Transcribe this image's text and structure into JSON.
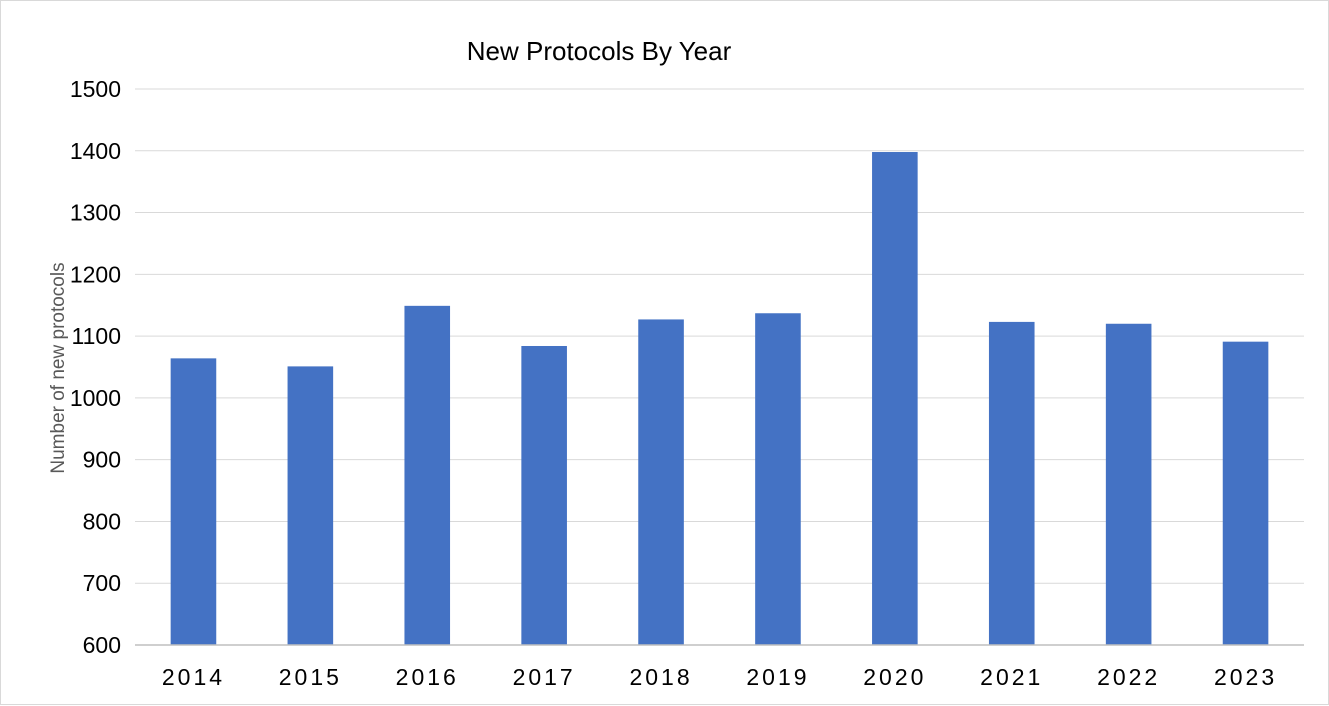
{
  "chart_data": {
    "type": "bar",
    "title": "New Protocols By Year",
    "xlabel": "",
    "ylabel": "Number of new protocols",
    "categories": [
      "2014",
      "2015",
      "2016",
      "2017",
      "2018",
      "2019",
      "2020",
      "2021",
      "2022",
      "2023"
    ],
    "series": [
      {
        "values": [
          1064,
          1051,
          1149,
          1084,
          1127,
          1137,
          1398,
          1123,
          1120,
          1091
        ]
      }
    ],
    "ylim": [
      600,
      1500
    ],
    "yticks": [
      "600",
      "700",
      "800",
      "900",
      "1000",
      "1100",
      "1200",
      "1300",
      "1400",
      "1500"
    ],
    "grid": true,
    "legend": "none",
    "colors": {
      "bar": "#4472c4",
      "grid": "#d9d9d9",
      "axis": "#bfbfbf"
    }
  }
}
